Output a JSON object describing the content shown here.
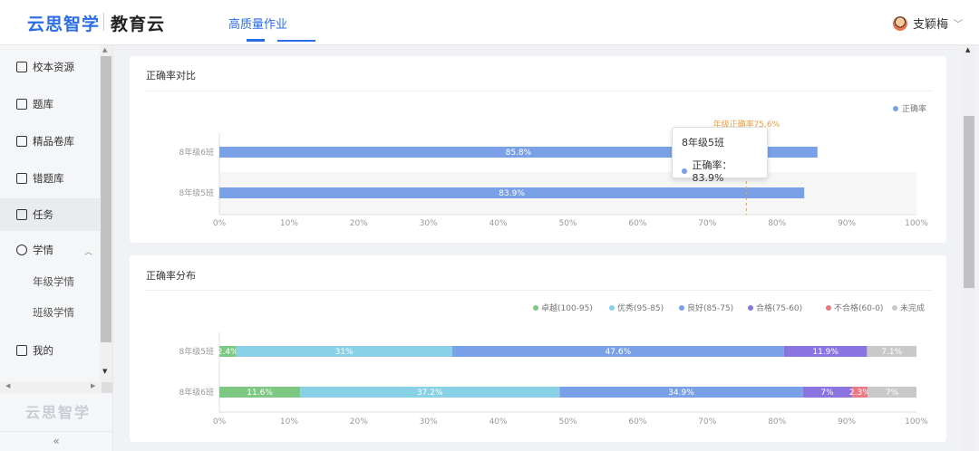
{
  "header": {
    "logo": "云思智学",
    "logo_sub": "教育云",
    "nav_tab": "高质量作业",
    "user_name": "支颖梅"
  },
  "sidebar": {
    "items": [
      {
        "label": "校本资源",
        "icon": "resource-icon"
      },
      {
        "label": "题库",
        "icon": "question-bank-icon"
      },
      {
        "label": "精品卷库",
        "icon": "paper-library-icon"
      },
      {
        "label": "错题库",
        "icon": "wrong-question-icon"
      },
      {
        "label": "任务",
        "icon": "task-icon"
      },
      {
        "label": "学情",
        "icon": "analytics-icon"
      },
      {
        "label": "我的",
        "icon": "my-icon"
      }
    ],
    "sub_items": [
      "年级学情",
      "班级学情"
    ],
    "brand": "云思智学",
    "collapse": "«"
  },
  "colors": {
    "accent": "#2b6de5",
    "bar_blue": "#7aa1e8",
    "excellent_green": "#7dc883",
    "good_cyan": "#88d1e6",
    "fine_blue": "#7aa1e8",
    "pass_purple": "#8a75e0",
    "fail_red": "#e87a86",
    "incomplete_gray": "#c9c9c9",
    "avg_line": "#f0a040"
  },
  "chart_data": [
    {
      "type": "bar",
      "title": "正确率对比",
      "orientation": "horizontal",
      "categories": [
        "8年级6班",
        "8年级5班"
      ],
      "series": [
        {
          "name": "正确率",
          "values": [
            85.8,
            83.9
          ]
        }
      ],
      "data_labels": [
        "85.8%",
        "83.9%"
      ],
      "xlim": [
        0,
        100
      ],
      "x_ticks": [
        "0%",
        "10%",
        "20%",
        "30%",
        "40%",
        "50%",
        "60%",
        "70%",
        "80%",
        "90%",
        "100%"
      ],
      "reference_line": {
        "label": "年级正确率75.6%",
        "value": 75.6
      },
      "legend_position": "top-right",
      "tooltip": {
        "title": "8年级5班",
        "label": "正确率",
        "value": "83.9%"
      }
    },
    {
      "type": "bar",
      "title": "正确率分布",
      "orientation": "horizontal",
      "stacked": true,
      "categories": [
        "8年级5班",
        "8年级6班"
      ],
      "series": [
        {
          "name": "卓越(100-95)",
          "values": [
            2.4,
            11.6
          ],
          "labels": [
            "2.4%",
            "11.6%"
          ]
        },
        {
          "name": "优秀(95-85)",
          "values": [
            31,
            37.2
          ],
          "labels": [
            "31%",
            "37.2%"
          ]
        },
        {
          "name": "良好(85-75)",
          "values": [
            47.6,
            34.9
          ],
          "labels": [
            "47.6%",
            "34.9%"
          ]
        },
        {
          "name": "合格(75-60)",
          "values": [
            11.9,
            7
          ],
          "labels": [
            "11.9%",
            "7%"
          ]
        },
        {
          "name": "不合格(60-0)",
          "values": [
            0,
            2.3
          ],
          "labels": [
            "",
            "2.3%"
          ]
        },
        {
          "name": "未完成",
          "values": [
            7.1,
            7
          ],
          "labels": [
            "7.1%",
            "7%"
          ]
        }
      ],
      "xlim": [
        0,
        100
      ],
      "x_ticks": [
        "0%",
        "10%",
        "20%",
        "30%",
        "40%",
        "50%",
        "60%",
        "70%",
        "80%",
        "90%",
        "100%"
      ],
      "legend_position": "top-right"
    }
  ]
}
